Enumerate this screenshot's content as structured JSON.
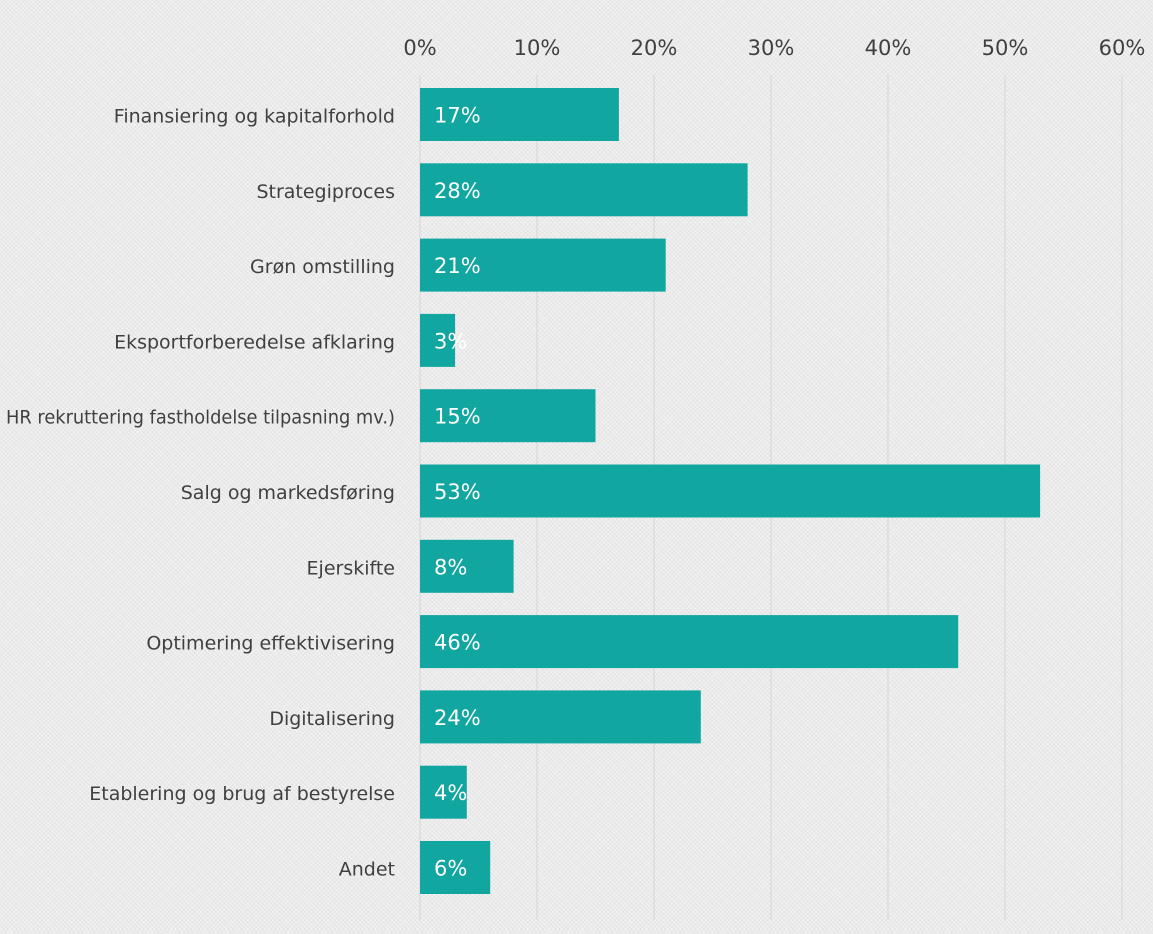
{
  "chart_data": {
    "type": "bar",
    "orientation": "horizontal",
    "title": "",
    "xlabel": "",
    "ylabel": "",
    "categories": [
      "Finansiering og kapitalforhold",
      "Strategiproces",
      "Grøn omstilling",
      "Eksportforberedelse afklaring",
      "HR rekruttering fastholdelse tilpasning mv.)",
      "Salg og markedsføring",
      "Ejerskifte",
      "Optimering effektivisering",
      "Digitalisering",
      "Etablering og brug af bestyrelse",
      "Andet"
    ],
    "values": [
      17,
      28,
      21,
      3,
      15,
      53,
      8,
      46,
      24,
      4,
      6
    ],
    "data_labels": [
      "17%",
      "28%",
      "21%",
      "3%",
      "15%",
      "53%",
      "8%",
      "46%",
      "24%",
      "4%",
      "6%"
    ],
    "xlim": [
      0,
      60
    ],
    "x_ticks": [
      0,
      10,
      20,
      30,
      40,
      50,
      60
    ],
    "x_tick_labels": [
      "0%",
      "10%",
      "20%",
      "30%",
      "40%",
      "50%",
      "60%"
    ],
    "x_axis_position": "top",
    "grid": true,
    "legend": "none",
    "colors": {
      "bar": "#12a6a1",
      "bar_label": "#ffffff",
      "grid": "#d9d9d9",
      "text": "#404040"
    }
  }
}
